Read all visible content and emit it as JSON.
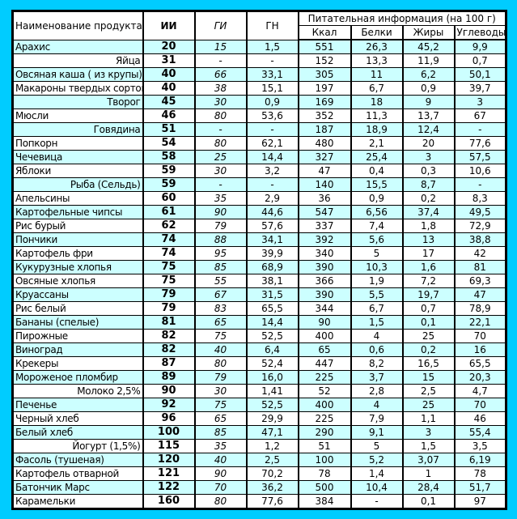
{
  "header": {
    "name": "Наименование продукта",
    "ii": "ИИ",
    "gi": "ГИ",
    "gn": "ГН",
    "nutrition": "Питательная информация (на 100 г)",
    "kcal": "Ккал",
    "protein": "Белки",
    "fat": "Жиры",
    "carbs": "Углеводы"
  },
  "colors": {
    "frame": "#00ccff",
    "row_alt": "#ccffff"
  },
  "rows": [
    {
      "name": "Арахис",
      "ii": "20",
      "gi": "15",
      "gn": "1,5",
      "kcal": "551",
      "protein": "26,3",
      "fat": "45,2",
      "carbs": "9,9"
    },
    {
      "name": "Яйца",
      "align": "right",
      "ii": "31",
      "gi": "-",
      "gn": "-",
      "kcal": "152",
      "protein": "13,3",
      "fat": "11,9",
      "carbs": "0,7"
    },
    {
      "name": "Овсяная каша ( из крупы)",
      "ii": "40",
      "gi": "66",
      "gn": "33,1",
      "kcal": "305",
      "protein": "11",
      "fat": "6,2",
      "carbs": "50,1"
    },
    {
      "name": "Макароны твердых сортов",
      "ii": "40",
      "gi": "38",
      "gn": "15,1",
      "kcal": "197",
      "protein": "6,7",
      "fat": "0,9",
      "carbs": "39,7"
    },
    {
      "name": "Творог",
      "align": "right",
      "ii": "45",
      "gi": "30",
      "gn": "0,9",
      "kcal": "169",
      "protein": "18",
      "fat": "9",
      "carbs": "3"
    },
    {
      "name": "Мюсли",
      "ii": "46",
      "gi": "80",
      "gn": "53,6",
      "kcal": "352",
      "protein": "11,3",
      "fat": "13,7",
      "carbs": "67"
    },
    {
      "name": "Говядина",
      "align": "right",
      "ii": "51",
      "gi": "-",
      "gn": "-",
      "kcal": "187",
      "protein": "18,9",
      "fat": "12,4",
      "carbs": "-"
    },
    {
      "name": "Попкорн",
      "ii": "54",
      "gi": "80",
      "gn": "62,1",
      "kcal": "480",
      "protein": "2,1",
      "fat": "20",
      "carbs": "77,6"
    },
    {
      "name": "Чечевица",
      "ii": "58",
      "gi": "25",
      "gn": "14,4",
      "kcal": "327",
      "protein": "25,4",
      "fat": "3",
      "carbs": "57,5"
    },
    {
      "name": "Яблоки",
      "ii": "59",
      "gi": "30",
      "gn": "3,2",
      "kcal": "47",
      "protein": "0,4",
      "fat": "0,3",
      "carbs": "10,6"
    },
    {
      "name": "Рыба (Сельдь)",
      "align": "right",
      "ii": "59",
      "gi": "-",
      "gn": "-",
      "kcal": "140",
      "protein": "15,5",
      "fat": "8,7",
      "carbs": "-"
    },
    {
      "name": "Апельсины",
      "ii": "60",
      "gi": "35",
      "gn": "2,9",
      "kcal": "36",
      "protein": "0,9",
      "fat": "0,2",
      "carbs": "8,3"
    },
    {
      "name": "Картофельные чипсы",
      "ii": "61",
      "gi": "90",
      "gn": "44,6",
      "kcal": "547",
      "protein": "6,56",
      "fat": "37,4",
      "carbs": "49,5"
    },
    {
      "name": "Рис бурый",
      "ii": "62",
      "gi": "79",
      "gn": "57,6",
      "kcal": "337",
      "protein": "7,4",
      "fat": "1,8",
      "carbs": "72,9"
    },
    {
      "name": "Пончики",
      "ii": "74",
      "gi": "88",
      "gn": "34,1",
      "kcal": "392",
      "protein": "5,6",
      "fat": "13",
      "carbs": "38,8"
    },
    {
      "name": "Картофель фри",
      "ii": "74",
      "gi": "95",
      "gn": "39,9",
      "kcal": "340",
      "protein": "5",
      "fat": "17",
      "carbs": "42"
    },
    {
      "name": "Кукурузные хлопья",
      "ii": "75",
      "gi": "85",
      "gn": "68,9",
      "kcal": "390",
      "protein": "10,3",
      "fat": "1,6",
      "carbs": "81"
    },
    {
      "name": "Овсяные хлопья",
      "ii": "75",
      "gi": "55",
      "gn": "38,1",
      "kcal": "366",
      "protein": "1,9",
      "fat": "7,2",
      "carbs": "69,3"
    },
    {
      "name": "Круассаны",
      "ii": "79",
      "gi": "67",
      "gn": "31,5",
      "kcal": "390",
      "protein": "5,5",
      "fat": "19,7",
      "carbs": "47"
    },
    {
      "name": "Рис белый",
      "ii": "79",
      "gi": "83",
      "gn": "65,5",
      "kcal": "344",
      "protein": "6,7",
      "fat": "0,7",
      "carbs": "78,9"
    },
    {
      "name": "Бананы (спелые)",
      "ii": "81",
      "gi": "65",
      "gn": "14,4",
      "kcal": "90",
      "protein": "1,5",
      "fat": "0,1",
      "carbs": "22,1"
    },
    {
      "name": "Пирожные",
      "ii": "82",
      "gi": "75",
      "gn": "52,5",
      "kcal": "400",
      "protein": "4",
      "fat": "25",
      "carbs": "70"
    },
    {
      "name": "Виноград",
      "ii": "82",
      "gi": "40",
      "gn": "6,4",
      "kcal": "65",
      "protein": "0,6",
      "fat": "0,2",
      "carbs": "16"
    },
    {
      "name": "Крекеры",
      "ii": "87",
      "gi": "80",
      "gn": "52,4",
      "kcal": "447",
      "protein": "8,2",
      "fat": "16,5",
      "carbs": "65,5"
    },
    {
      "name": "Мороженое пломбир",
      "ii": "89",
      "gi": "79",
      "gn": "16,0",
      "kcal": "225",
      "protein": "3,7",
      "fat": "15",
      "carbs": "20,3"
    },
    {
      "name": "Молоко 2,5%",
      "align": "right",
      "ii": "90",
      "gi": "30",
      "gn": "1,41",
      "kcal": "52",
      "protein": "2,8",
      "fat": "2,5",
      "carbs": "4,7"
    },
    {
      "name": "Печенье",
      "ii": "92",
      "gi": "75",
      "gn": "52,5",
      "kcal": "400",
      "protein": "4",
      "fat": "25",
      "carbs": "70"
    },
    {
      "name": "Черный хлеб",
      "ii": "96",
      "gi": "65",
      "gn": "29,9",
      "kcal": "225",
      "protein": "7,9",
      "fat": "1,1",
      "carbs": "46"
    },
    {
      "name": "Белый хлеб",
      "ii": "100",
      "gi": "85",
      "gn": "47,1",
      "kcal": "290",
      "protein": "9,1",
      "fat": "3",
      "carbs": "55,4"
    },
    {
      "name": "Йогурт (1,5%)",
      "align": "right",
      "ii": "115",
      "gi": "35",
      "gn": "1,2",
      "kcal": "51",
      "protein": "5",
      "fat": "1,5",
      "carbs": "3,5"
    },
    {
      "name": "Фасоль (тушеная)",
      "ii": "120",
      "gi": "40",
      "gn": "2,5",
      "kcal": "100",
      "protein": "5,2",
      "fat": "3,07",
      "carbs": "6,19"
    },
    {
      "name": "Картофель отварной",
      "ii": "121",
      "gi": "90",
      "gn": "70,2",
      "kcal": "78",
      "protein": "1,4",
      "fat": "1",
      "carbs": "78"
    },
    {
      "name": "Батончик Марс",
      "ii": "122",
      "gi": "70",
      "gn": "36,2",
      "kcal": "500",
      "protein": "10,4",
      "fat": "28,4",
      "carbs": "51,7"
    },
    {
      "name": "Карамельки",
      "ii": "160",
      "gi": "80",
      "gn": "77,6",
      "kcal": "384",
      "protein": "-",
      "fat": "0,1",
      "carbs": "97"
    }
  ]
}
